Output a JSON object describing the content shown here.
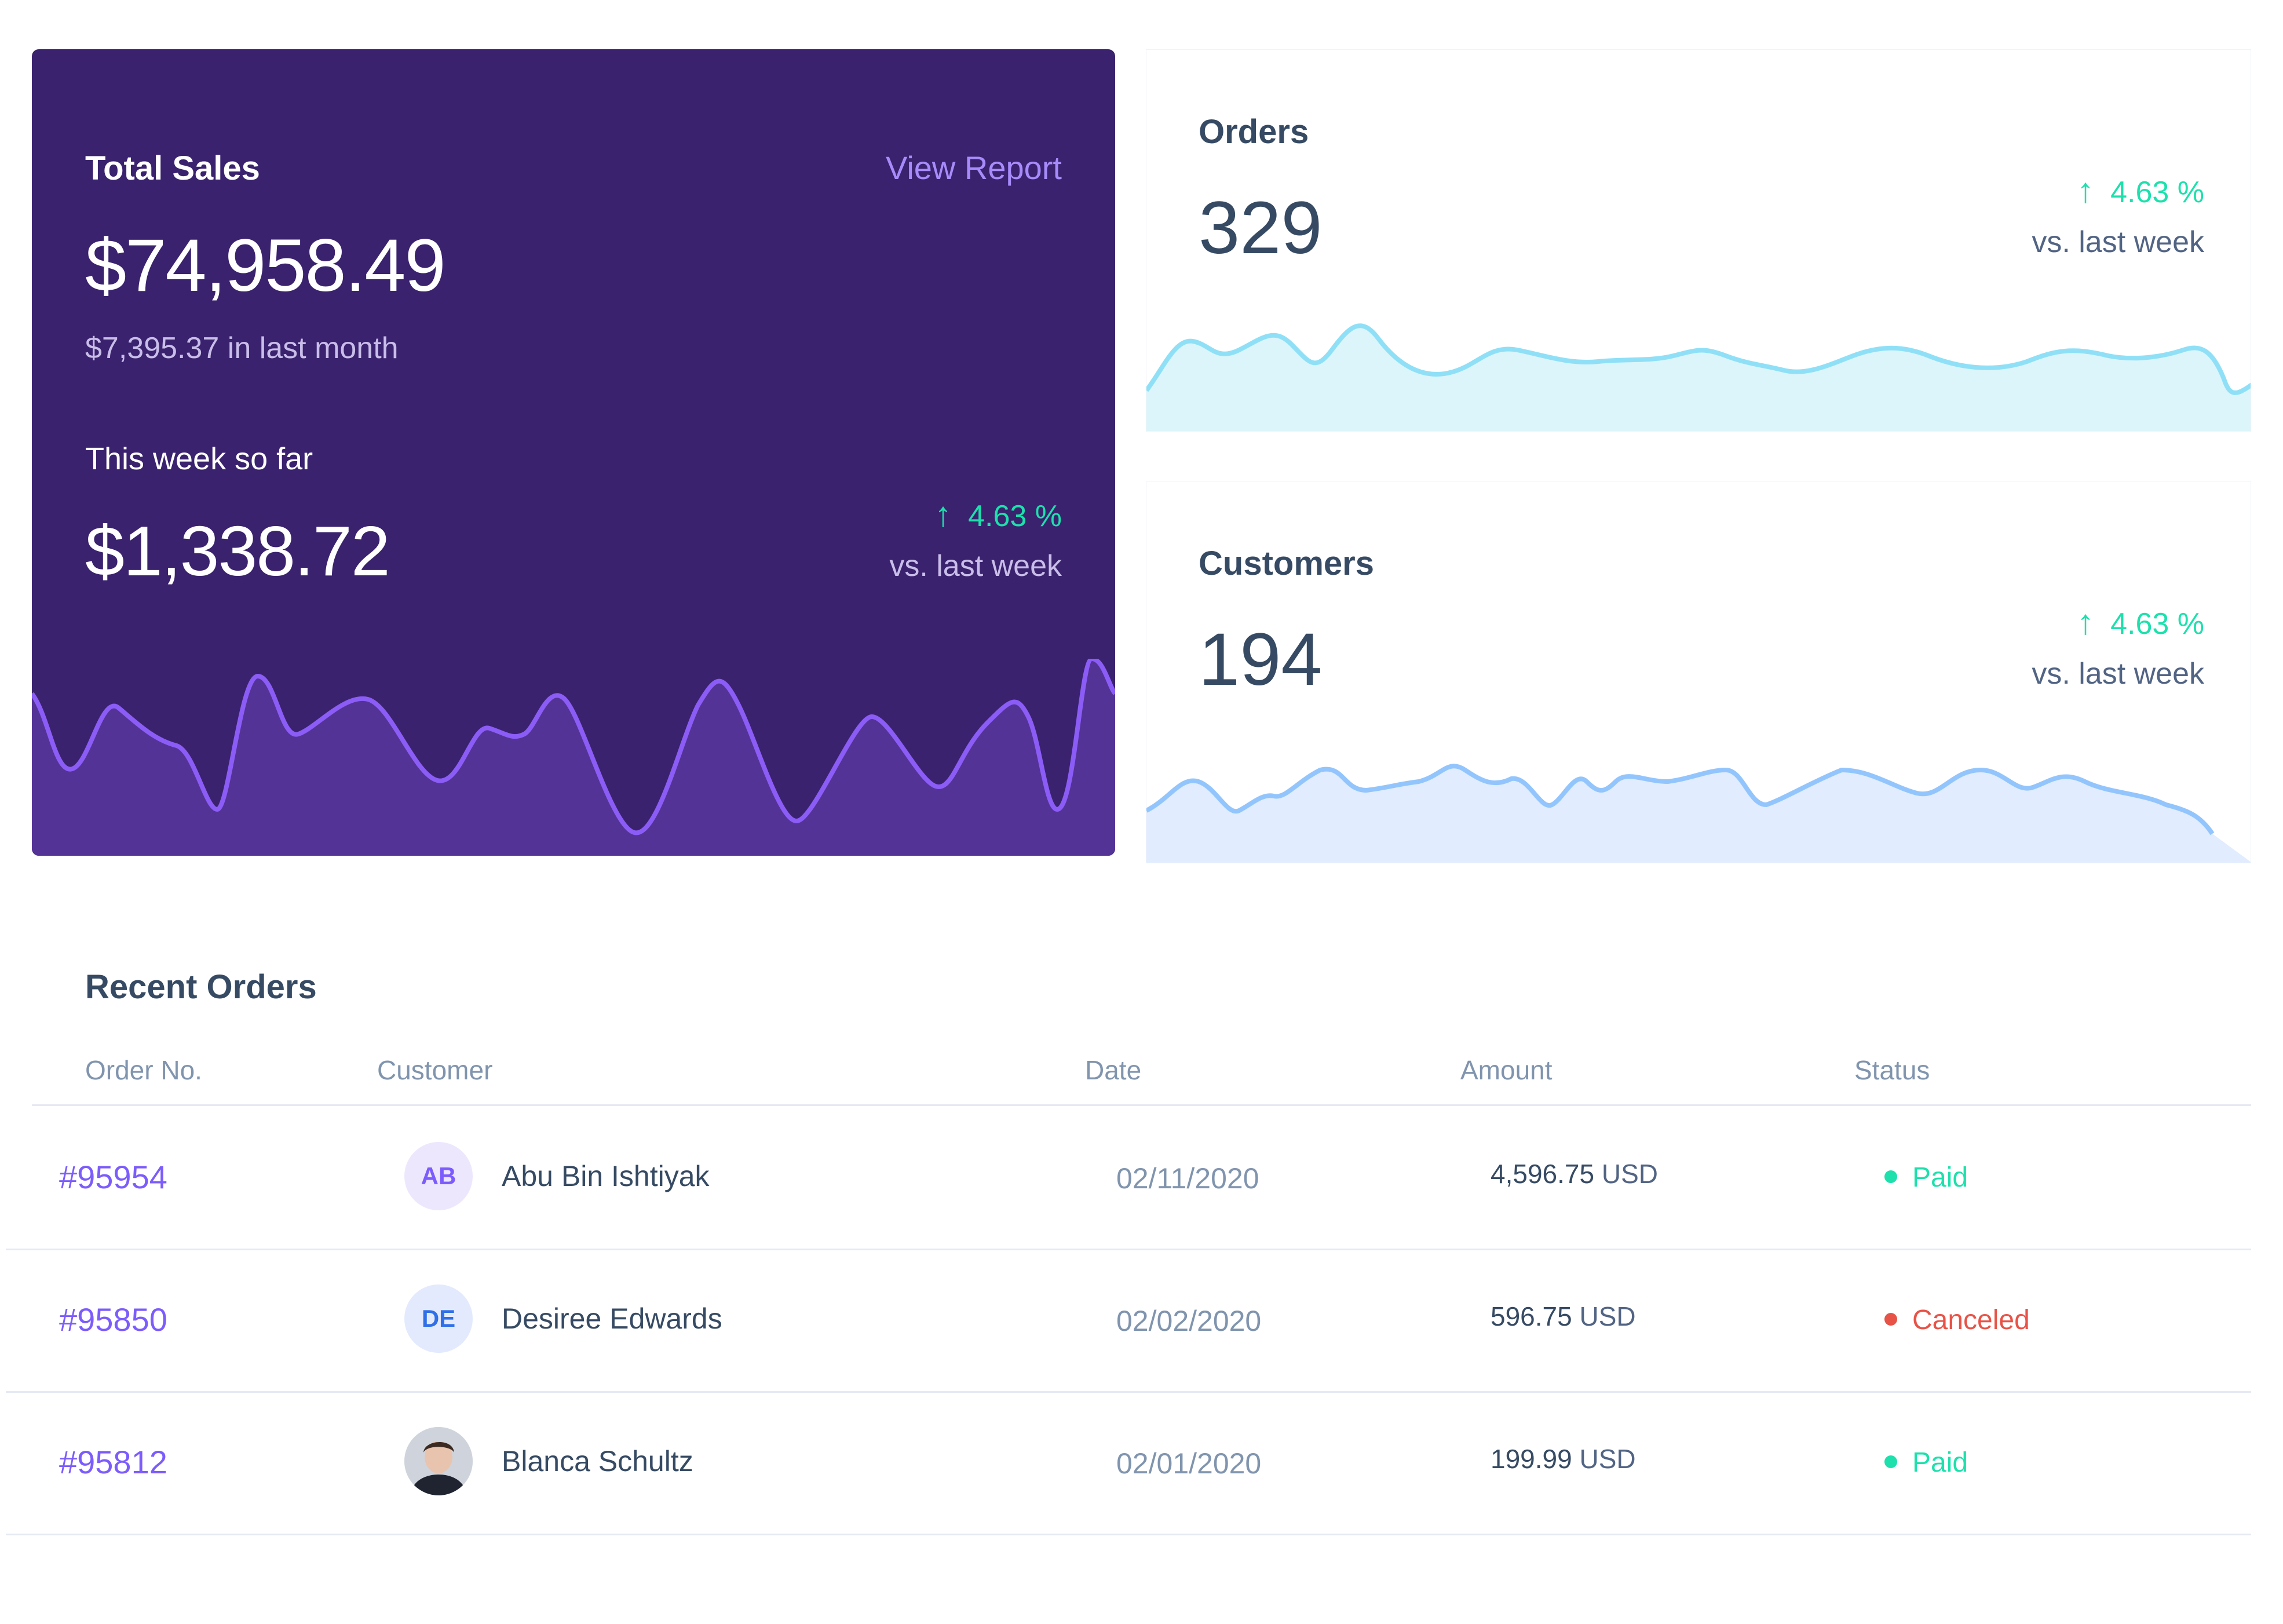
{
  "total_sales": {
    "title": "Total Sales",
    "link_label": "View Report",
    "amount": "$74,958.49",
    "last_month": "$7,395.37 in last month",
    "week_label": "This week so far",
    "week_amount": "$1,338.72",
    "change_value": "4.63 %",
    "change_caption": "vs. last week",
    "change_direction": "up",
    "colors": {
      "background": "#3a226e",
      "line": "#8b5cf6",
      "fill": "#533396"
    }
  },
  "orders": {
    "title": "Orders",
    "value": "329",
    "change_value": "4.63 %",
    "change_caption": "vs. last week",
    "change_direction": "up",
    "colors": {
      "line": "#8fe0f7",
      "fill": "#dcf5fb"
    }
  },
  "customers": {
    "title": "Customers",
    "value": "194",
    "change_value": "4.63 %",
    "change_caption": "vs. last week",
    "change_direction": "up",
    "colors": {
      "line": "#93c5fd",
      "fill": "#e1ecfe"
    }
  },
  "recent_orders": {
    "title": "Recent Orders",
    "columns": [
      "Order No.",
      "Customer",
      "Date",
      "Amount",
      "Status"
    ],
    "rows": [
      {
        "order_no": "#95954",
        "initials": "AB",
        "customer": "Abu Bin Ishtiyak",
        "date": "02/11/2020",
        "amount": "4,596.75",
        "currency": "USD",
        "status": "Paid"
      },
      {
        "order_no": "#95850",
        "initials": "DE",
        "customer": "Desiree Edwards",
        "date": "02/02/2020",
        "amount": "596.75",
        "currency": "USD",
        "status": "Canceled"
      },
      {
        "order_no": "#95812",
        "initials": "",
        "customer": "Blanca Schultz",
        "date": "02/01/2020",
        "amount": "199.99",
        "currency": "USD",
        "status": "Paid"
      }
    ],
    "colors": {
      "paid": "#1ee0ac",
      "canceled": "#e85347",
      "order_link": "#7c5cfc"
    }
  }
}
